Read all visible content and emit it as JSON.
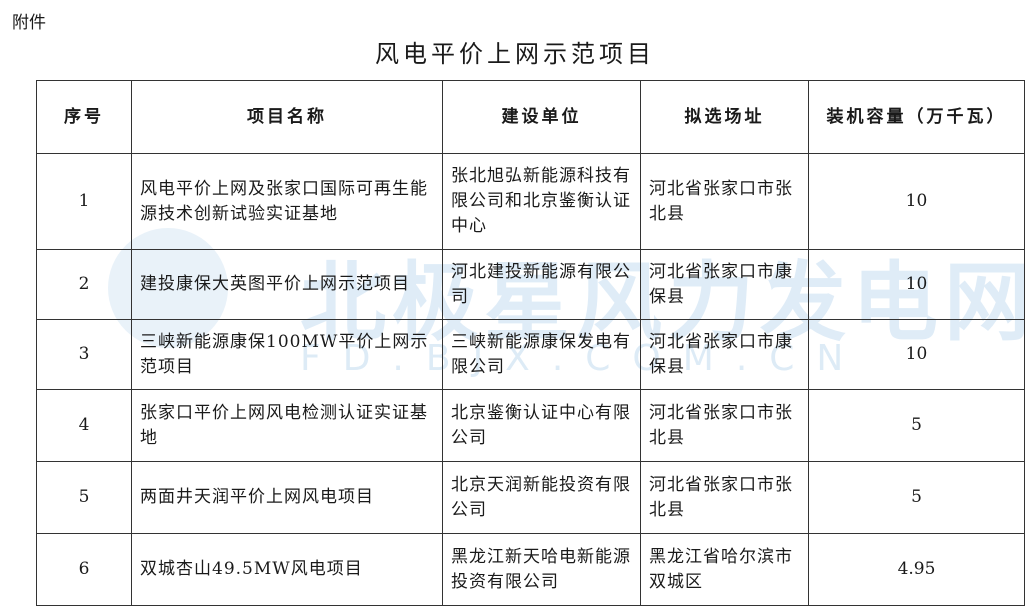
{
  "attachment_label": "附件",
  "title": "风电平价上网示范项目",
  "watermark": {
    "brand": "北极星风力发电网",
    "url": "FD.BJX.COM.CN"
  },
  "columns": [
    "序号",
    "项目名称",
    "建设单位",
    "拟选场址",
    "装机容量（万千瓦）"
  ],
  "rows": [
    {
      "no": "1",
      "name": "风电平价上网及张家口国际可再生能源技术创新试验实证基地",
      "unit": "张北旭弘新能源科技有限公司和北京鉴衡认证中心",
      "site": "河北省张家口市张北县",
      "capacity": "10"
    },
    {
      "no": "2",
      "name": "建投康保大英图平价上网示范项目",
      "unit": "河北建投新能源有限公司",
      "site": "河北省张家口市康保县",
      "capacity": "10"
    },
    {
      "no": "3",
      "name": "三峡新能源康保100MW平价上网示范项目",
      "unit": "三峡新能源康保发电有限公司",
      "site": "河北省张家口市康保县",
      "capacity": "10"
    },
    {
      "no": "4",
      "name": "张家口平价上网风电检测认证实证基地",
      "unit": "北京鉴衡认证中心有限公司",
      "site": "河北省张家口市张北县",
      "capacity": "5"
    },
    {
      "no": "5",
      "name": "两面井天润平价上网风电项目",
      "unit": "北京天润新能投资有限公司",
      "site": "河北省张家口市张北县",
      "capacity": "5"
    },
    {
      "no": "6",
      "name": "双城杏山49.5MW风电项目",
      "unit": "黑龙江新天哈电新能源投资有限公司",
      "site": "黑龙江省哈尔滨市双城区",
      "capacity": "4.95"
    }
  ]
}
